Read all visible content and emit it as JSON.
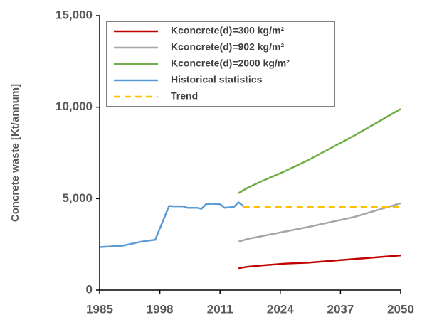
{
  "chart_data": {
    "type": "line",
    "y_label": "Concrete waste [Kt/annum]",
    "xlim": [
      1985,
      2050
    ],
    "xticks": [
      1985,
      1998,
      2011,
      2024,
      2037,
      2050
    ],
    "ylim": [
      0,
      15000
    ],
    "yticks": [
      0,
      {
        "value": 5000,
        "label": "5,000"
      },
      {
        "value": 10000,
        "label": "10,000"
      },
      {
        "value": 15000,
        "label": "15,000"
      }
    ],
    "legend": "top",
    "series": [
      {
        "name": "Kconcrete(d)=300 kg/m²",
        "color": "#c00000",
        "dash": false,
        "x": [
          2015,
          2017,
          2020,
          2025,
          2030,
          2040,
          2050
        ],
        "values": [
          1200,
          1280,
          1350,
          1450,
          1500,
          1700,
          1900
        ]
      },
      {
        "name": "Kconcrete(d)=902 kg/m²",
        "color": "#a6a6a6",
        "dash": false,
        "x": [
          2015,
          2017,
          2020,
          2025,
          2030,
          2040,
          2050
        ],
        "values": [
          2650,
          2800,
          2950,
          3200,
          3450,
          4000,
          4750
        ]
      },
      {
        "name": "Kconcrete(d)=2000 kg/m²",
        "color": "#70ad47",
        "dash": false,
        "x": [
          2015,
          2017,
          2020,
          2025,
          2030,
          2040,
          2050
        ],
        "values": [
          5300,
          5600,
          5950,
          6500,
          7100,
          8450,
          9900
        ]
      },
      {
        "name": "Historical statistics",
        "color": "#5b9bd5",
        "dash": false,
        "x": [
          1985,
          1990,
          1994,
          1996,
          1997,
          2000,
          2001,
          2003,
          2004,
          2006,
          2007,
          2008,
          2009,
          2011,
          2012,
          2014,
          2015,
          2016
        ],
        "values": [
          2350,
          2430,
          2650,
          2720,
          2750,
          4600,
          4580,
          4580,
          4500,
          4500,
          4450,
          4700,
          4720,
          4700,
          4500,
          4550,
          4800,
          4600
        ]
      },
      {
        "name": "Trend",
        "color": "#ffc000",
        "dash": true,
        "x": [
          2016,
          2050
        ],
        "values": [
          4550,
          4550
        ]
      }
    ]
  }
}
